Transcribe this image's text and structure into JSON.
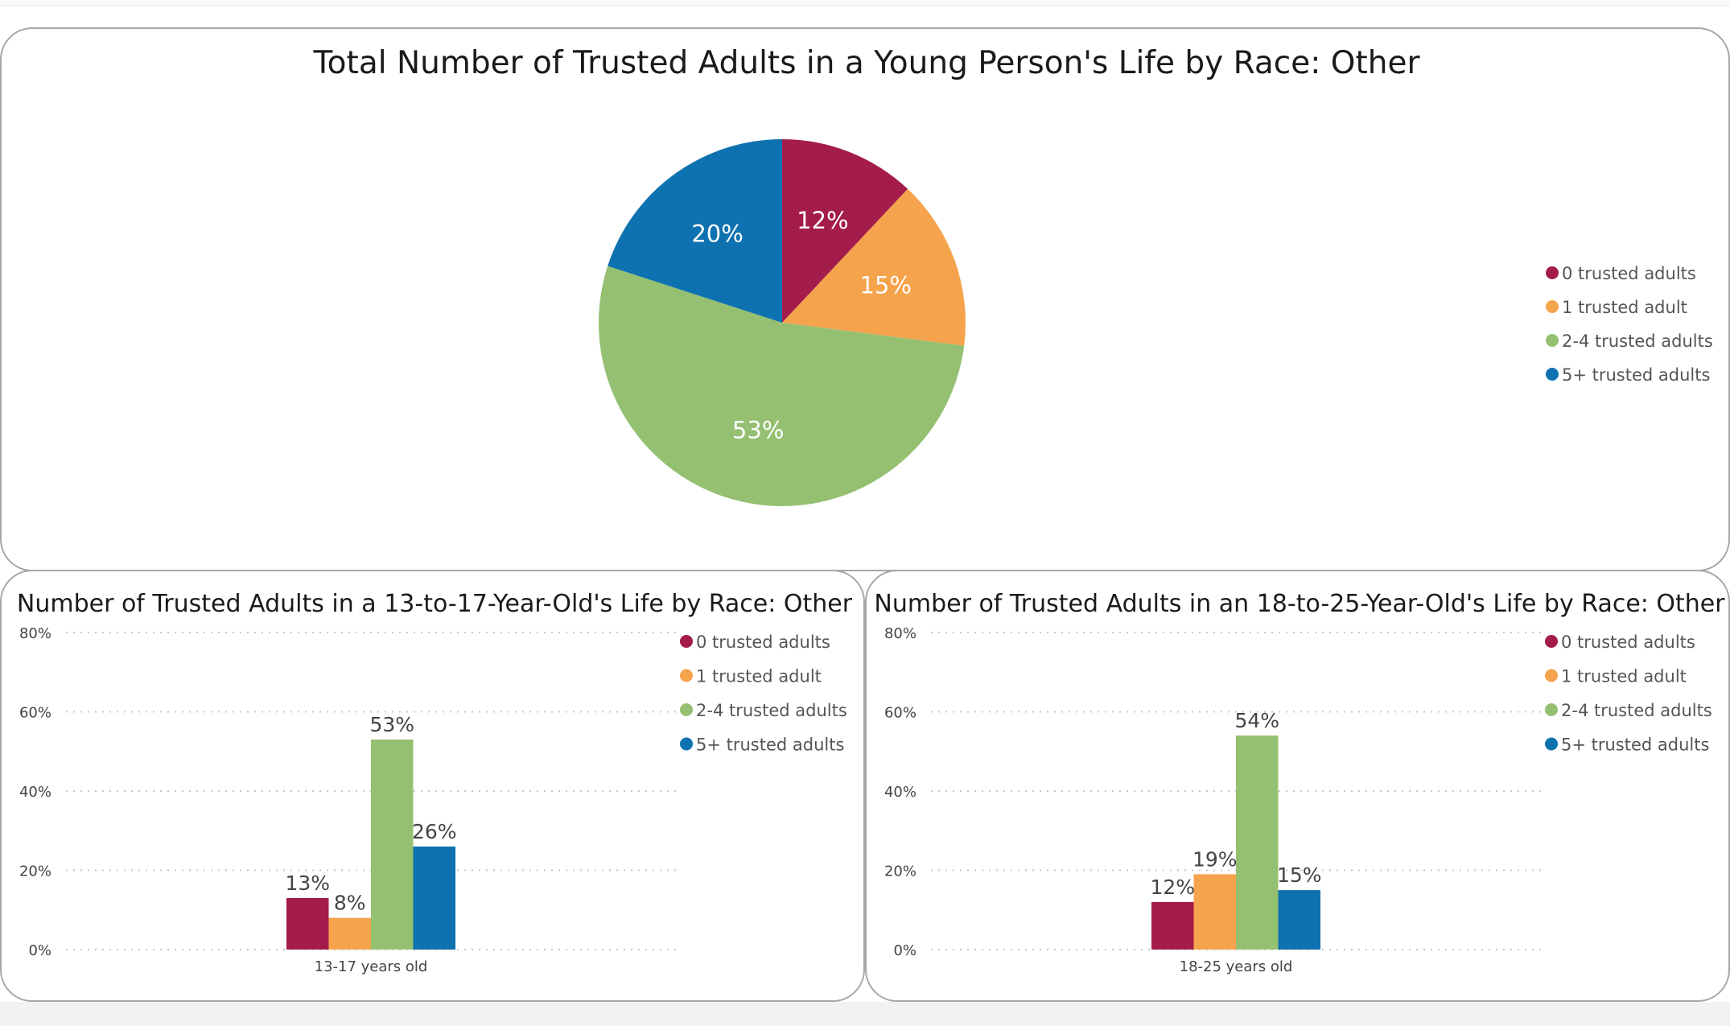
{
  "chart_data": [
    {
      "id": "pie-total",
      "type": "pie",
      "title": "Total Number of Trusted Adults in a Young Person's Life by Race: Other",
      "categories": [
        "0 trusted adults",
        "1 trusted adult",
        "2-4 trusted adults",
        "5+ trusted adults"
      ],
      "values": [
        12,
        15,
        53,
        20
      ],
      "data_labels": [
        "12%",
        "15%",
        "53%",
        "20%"
      ],
      "colors": [
        "#A31C4B",
        "#F5A34C",
        "#95C072",
        "#0E72B0"
      ],
      "legend": "right"
    },
    {
      "id": "bar-13-17",
      "type": "bar",
      "title": "Number of Trusted Adults in a 13-to-17-Year-Old's Life by Race: Other",
      "categories": [
        "13-17 years old"
      ],
      "series": [
        {
          "name": "0 trusted adults",
          "values": [
            13
          ],
          "label": "13%",
          "color": "#A31C4B"
        },
        {
          "name": "1 trusted adult",
          "values": [
            8
          ],
          "label": "8%",
          "color": "#F5A34C"
        },
        {
          "name": "2-4 trusted adults",
          "values": [
            53
          ],
          "label": "53%",
          "color": "#95C072"
        },
        {
          "name": "5+ trusted adults",
          "values": [
            26
          ],
          "label": "26%",
          "color": "#0E72B0"
        }
      ],
      "yticks": [
        "0%",
        "20%",
        "40%",
        "60%",
        "80%"
      ],
      "ylim": [
        0,
        80
      ],
      "grid": true,
      "legend": "top-right"
    },
    {
      "id": "bar-18-25",
      "type": "bar",
      "title": "Number of Trusted Adults in an 18-to-25-Year-Old's Life by Race: Other",
      "categories": [
        "18-25 years old"
      ],
      "series": [
        {
          "name": "0 trusted adults",
          "values": [
            12
          ],
          "label": "12%",
          "color": "#A31C4B"
        },
        {
          "name": "1 trusted adult",
          "values": [
            19
          ],
          "label": "19%",
          "color": "#F5A34C"
        },
        {
          "name": "2-4 trusted adults",
          "values": [
            54
          ],
          "label": "54%",
          "color": "#95C072"
        },
        {
          "name": "5+ trusted adults",
          "values": [
            15
          ],
          "label": "15%",
          "color": "#0E72B0"
        }
      ],
      "yticks": [
        "0%",
        "20%",
        "40%",
        "60%",
        "80%"
      ],
      "ylim": [
        0,
        80
      ],
      "grid": true,
      "legend": "top-right"
    }
  ]
}
